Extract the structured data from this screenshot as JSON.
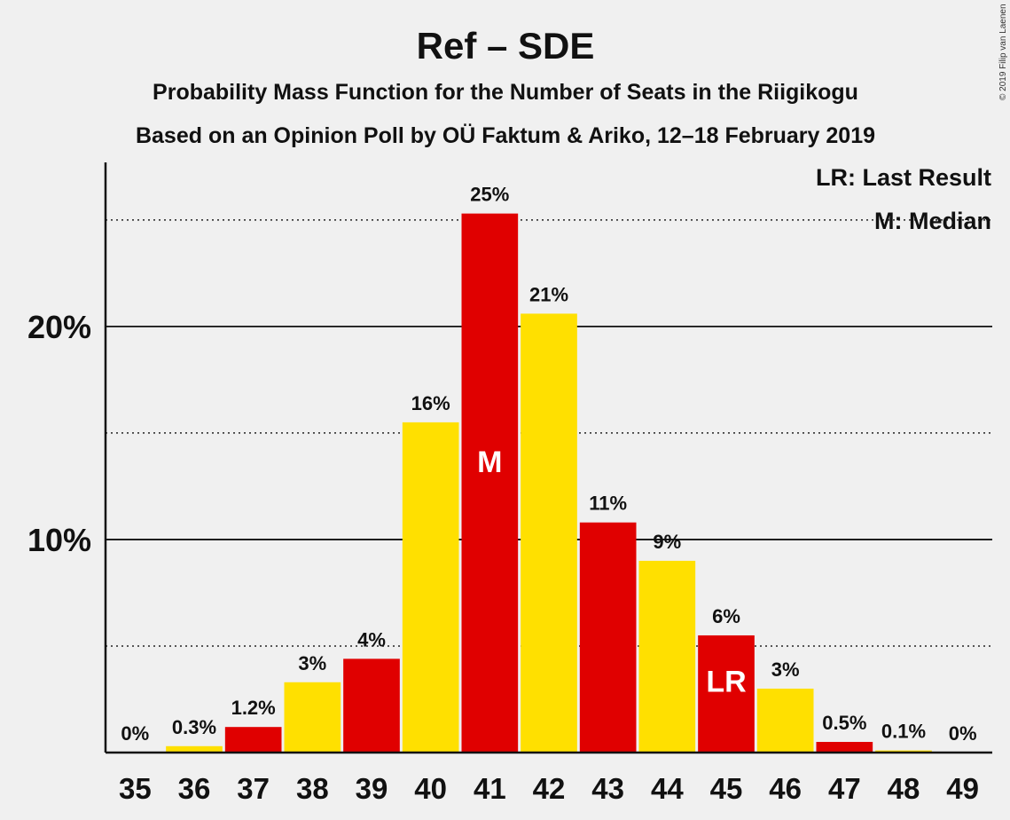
{
  "chart_data": {
    "type": "bar",
    "title": "Ref – SDE",
    "subtitle_lines": [
      "Probability Mass Function for the Number of Seats in the Riigikogu",
      "Based on an Opinion Poll by OÜ Faktum & Ariko, 12–18 February 2019"
    ],
    "copyright": "© 2019 Filip van Laenen",
    "legend": [
      "LR: Last Result",
      "M: Median"
    ],
    "legend_position": "top-right",
    "categories": [
      "35",
      "36",
      "37",
      "38",
      "39",
      "40",
      "41",
      "42",
      "43",
      "44",
      "45",
      "46",
      "47",
      "48",
      "49"
    ],
    "values": [
      0,
      0.3,
      1.2,
      3.3,
      4.4,
      15.5,
      25.3,
      20.6,
      10.8,
      9.0,
      5.5,
      3.0,
      0.5,
      0.1,
      0
    ],
    "data_labels": [
      "0%",
      "0.3%",
      "1.2%",
      "3%",
      "4%",
      "16%",
      "25%",
      "21%",
      "11%",
      "9%",
      "6%",
      "3%",
      "0.5%",
      "0.1%",
      "0%"
    ],
    "bar_colors": [
      "#e00000",
      "#ffe000",
      "#e00000",
      "#ffe000",
      "#e00000",
      "#ffe000",
      "#e00000",
      "#ffe000",
      "#e00000",
      "#ffe000",
      "#e00000",
      "#ffe000",
      "#e00000",
      "#ffe000",
      "#e00000"
    ],
    "annotations": [
      {
        "category": "41",
        "text": "M"
      },
      {
        "category": "45",
        "text": "LR"
      }
    ],
    "ylim": [
      0,
      27.7
    ],
    "y_tick_values": [
      10,
      20
    ],
    "y_tick_labels": [
      "10%",
      "20%"
    ],
    "solid_grid": [
      10,
      20
    ],
    "dotted_grid": [
      5,
      15,
      25
    ],
    "xlabel": "",
    "ylabel": ""
  }
}
